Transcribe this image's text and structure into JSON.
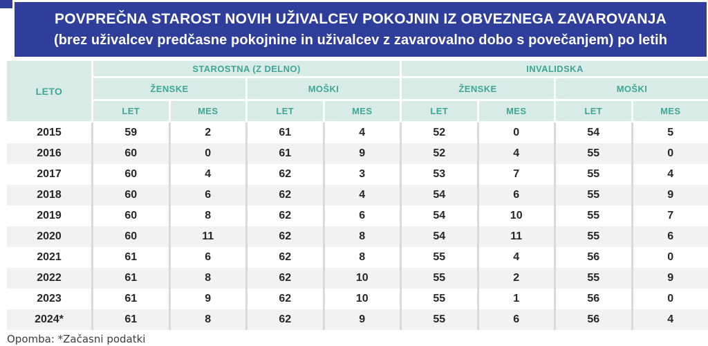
{
  "title": {
    "line1": "POVPREČNA STAROST NOVIH UŽIVALCEV POKOJNIN IZ OBVEZNEGA ZAVAROVANJA",
    "line2": "(brez uživalcev predčasne pokojnine in uživalcev z zavarovalno dobo s povečanjem) po letih"
  },
  "table": {
    "year_header": "LETO",
    "groups": [
      "STAROSTNA (Z DELNO)",
      "INVALIDSKA"
    ],
    "subgroups": [
      "ŽENSKE",
      "MOŠKI",
      "ŽENSKE",
      "MOŠKI"
    ],
    "units": [
      "LET",
      "MES",
      "LET",
      "MES",
      "LET",
      "MES",
      "LET",
      "MES"
    ],
    "rows": [
      {
        "year": "2015",
        "values": [
          59,
          2,
          61,
          4,
          52,
          0,
          54,
          5
        ]
      },
      {
        "year": "2016",
        "values": [
          60,
          0,
          61,
          9,
          52,
          4,
          55,
          0
        ]
      },
      {
        "year": "2017",
        "values": [
          60,
          4,
          62,
          3,
          53,
          7,
          55,
          4
        ]
      },
      {
        "year": "2018",
        "values": [
          60,
          6,
          62,
          4,
          54,
          6,
          55,
          9
        ]
      },
      {
        "year": "2019",
        "values": [
          60,
          8,
          62,
          6,
          54,
          10,
          55,
          7
        ]
      },
      {
        "year": "2020",
        "values": [
          60,
          11,
          62,
          8,
          54,
          11,
          55,
          6
        ]
      },
      {
        "year": "2021",
        "values": [
          61,
          6,
          62,
          8,
          55,
          4,
          56,
          0
        ]
      },
      {
        "year": "2022",
        "values": [
          61,
          8,
          62,
          10,
          55,
          2,
          55,
          9
        ]
      },
      {
        "year": "2023",
        "values": [
          61,
          9,
          62,
          10,
          55,
          1,
          56,
          0
        ]
      },
      {
        "year": "2024*",
        "values": [
          61,
          8,
          62,
          9,
          55,
          6,
          56,
          4
        ]
      }
    ]
  },
  "note": "Opomba: *Začasni podatki",
  "colors": {
    "banner_blue": "#2e3e9a",
    "header_mint": "#d8ebe7",
    "header_teal_text": "#3fa596",
    "row_stripe": "#f2f2f2",
    "grid_line": "#d9d9d9"
  },
  "chart_data": {
    "type": "table",
    "title": "POVPREČNA STAROST NOVIH UŽIVALCEV POKOJNIN IZ OBVEZNEGA ZAVAROVANJA (brez uživalcev predčasne pokojnine in uživalcev z zavarovalno dobo s povečanjem) po letih",
    "column_groups": [
      "STAROSTNA (Z DELNO) — ŽENSKE",
      "STAROSTNA (Z DELNO) — MOŠKI",
      "INVALIDSKA — ŽENSKE",
      "INVALIDSKA — MOŠKI"
    ],
    "columns": [
      "LETO",
      "STAROSTNA ŽENSKE LET",
      "STAROSTNA ŽENSKE MES",
      "STAROSTNA MOŠKI LET",
      "STAROSTNA MOŠKI MES",
      "INVALIDSKA ŽENSKE LET",
      "INVALIDSKA ŽENSKE MES",
      "INVALIDSKA MOŠKI LET",
      "INVALIDSKA MOŠKI MES"
    ],
    "rows": [
      [
        "2015",
        59,
        2,
        61,
        4,
        52,
        0,
        54,
        5
      ],
      [
        "2016",
        60,
        0,
        61,
        9,
        52,
        4,
        55,
        0
      ],
      [
        "2017",
        60,
        4,
        62,
        3,
        53,
        7,
        55,
        4
      ],
      [
        "2018",
        60,
        6,
        62,
        4,
        54,
        6,
        55,
        9
      ],
      [
        "2019",
        60,
        8,
        62,
        6,
        54,
        10,
        55,
        7
      ],
      [
        "2020",
        60,
        11,
        62,
        8,
        54,
        11,
        55,
        6
      ],
      [
        "2021",
        61,
        6,
        62,
        8,
        55,
        4,
        56,
        0
      ],
      [
        "2022",
        61,
        8,
        62,
        10,
        55,
        2,
        55,
        9
      ],
      [
        "2023",
        61,
        9,
        62,
        10,
        55,
        1,
        56,
        0
      ],
      [
        "2024*",
        61,
        8,
        62,
        9,
        55,
        6,
        56,
        4
      ]
    ],
    "footnote": "Opomba: *Začasni podatki"
  }
}
